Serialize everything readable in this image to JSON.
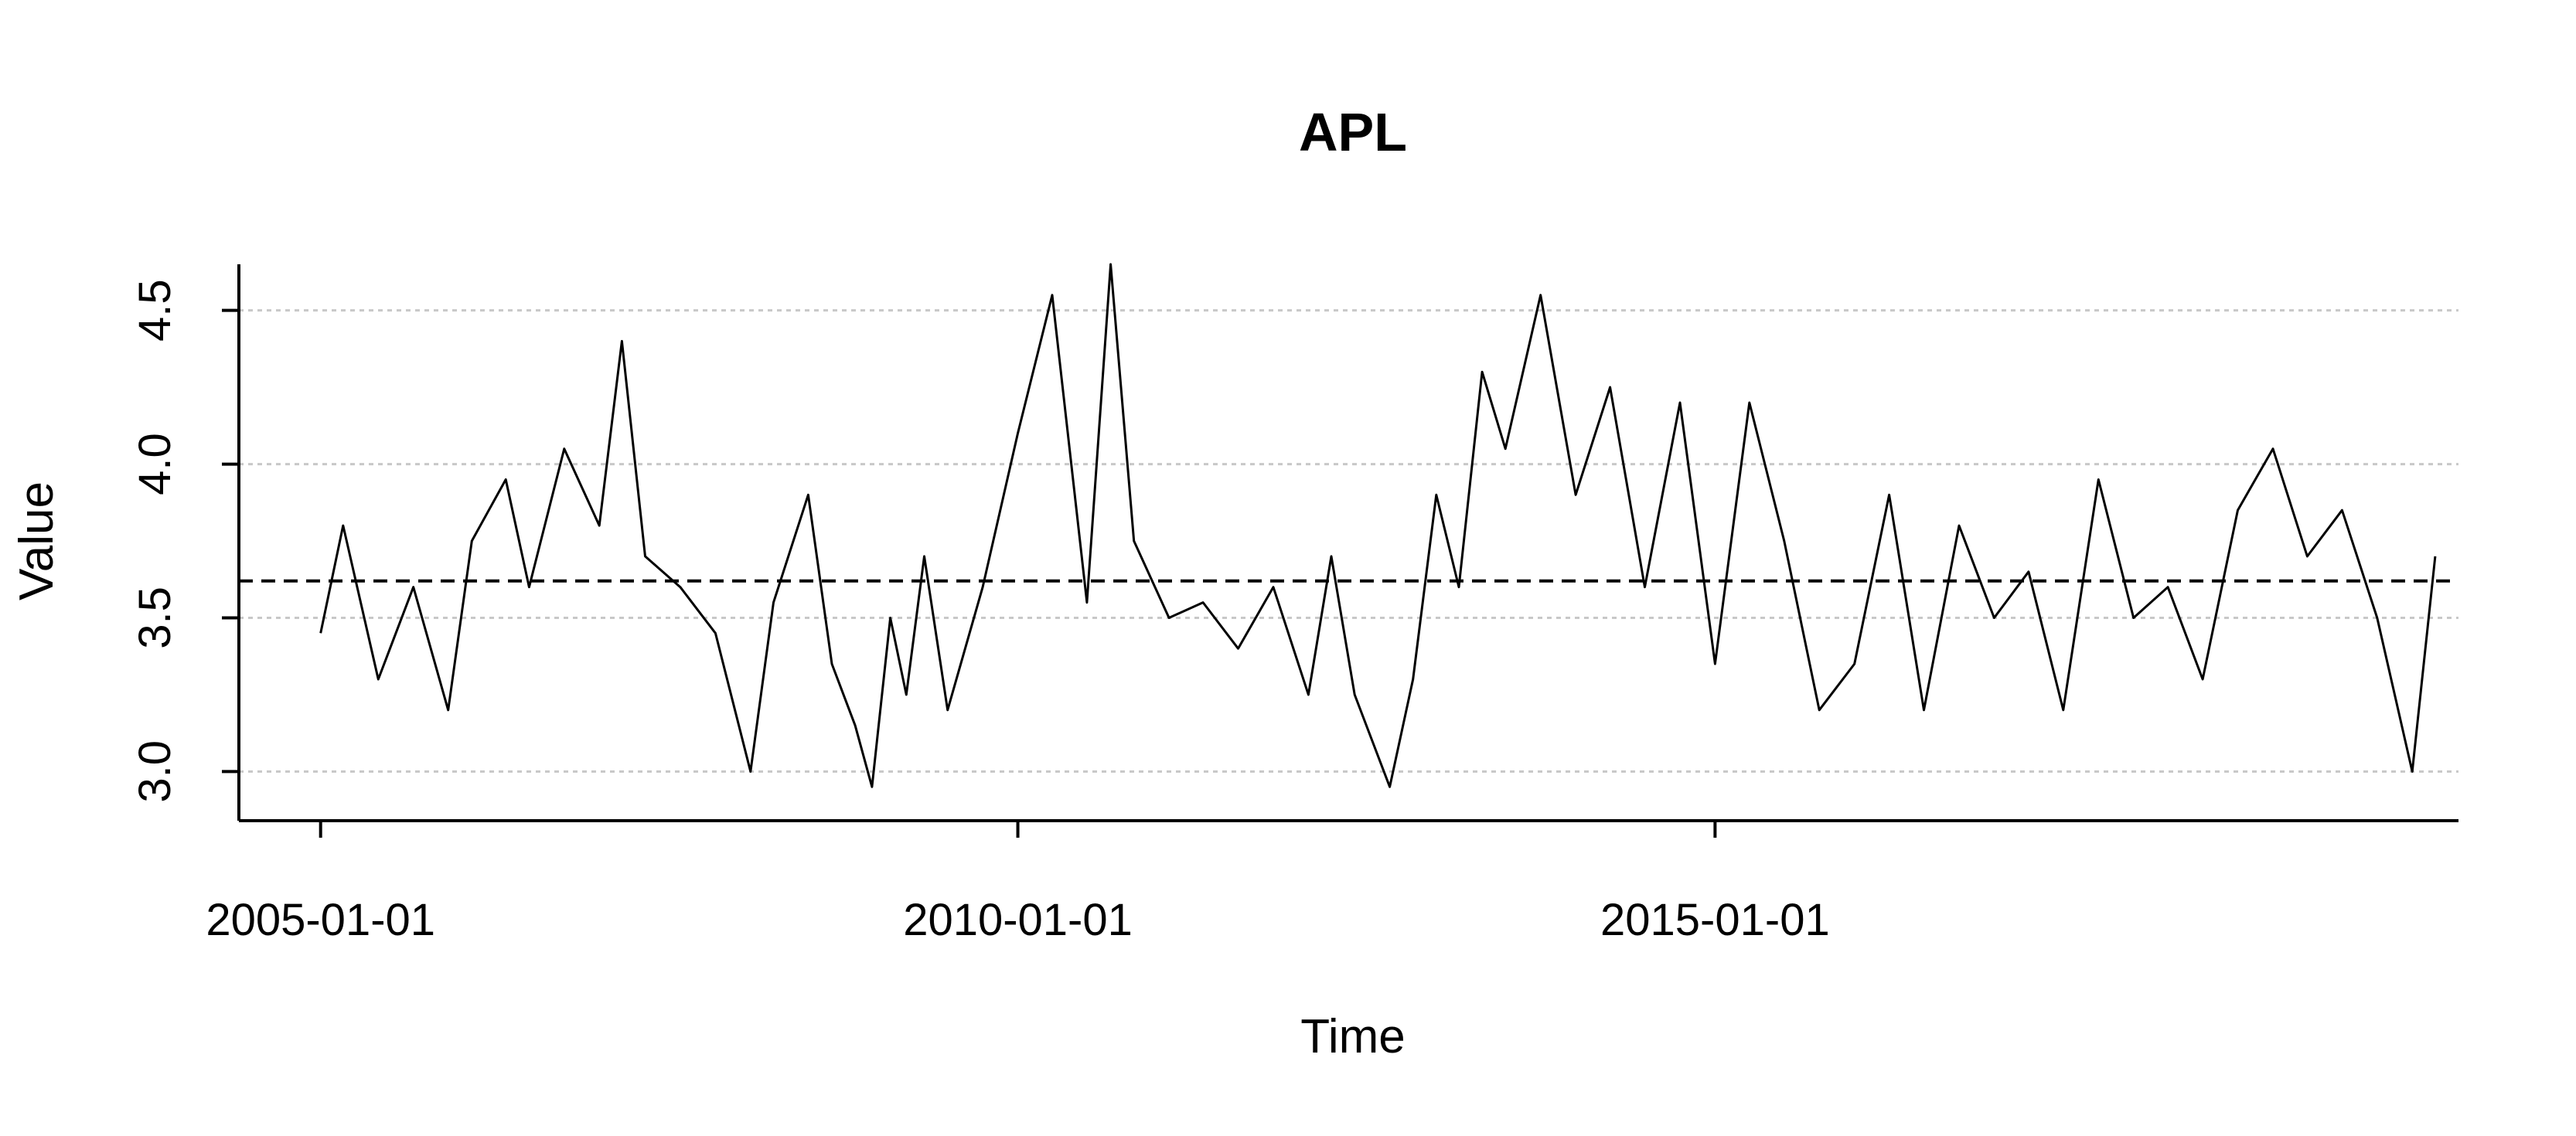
{
  "chart_data": {
    "type": "line",
    "title": "APL",
    "xlabel": "Time",
    "ylabel": "Value",
    "x_ticks": [
      "2005-01-01",
      "2010-01-01",
      "2015-01-01"
    ],
    "y_ticks": [
      "3.0",
      "3.5",
      "4.0",
      "4.5"
    ],
    "ylim": [
      2.84,
      4.65
    ],
    "xlim": [
      "2004-06-01",
      "2020-05-01"
    ],
    "gridlines_y": [
      3.0,
      3.5,
      4.0,
      4.5
    ],
    "mean_line": 3.62,
    "colors": {
      "line": "#000000",
      "grid": "#c8c8c8",
      "mean": "#000000"
    },
    "series": [
      {
        "x": [
          "2005-01-01",
          "2005-03-01",
          "2005-06-01",
          "2005-09-01",
          "2005-12-01",
          "2006-02-01",
          "2006-05-01",
          "2006-07-01",
          "2006-10-01",
          "2007-01-01",
          "2007-03-01",
          "2007-05-01",
          "2007-08-01",
          "2007-11-01",
          "2008-02-01",
          "2008-04-01",
          "2008-07-01",
          "2008-09-01",
          "2008-11-01",
          "2008-12-15",
          "2009-02-01",
          "2009-03-15",
          "2009-05-01",
          "2009-07-01",
          "2009-10-01",
          "2010-01-01",
          "2010-04-01",
          "2010-07-01",
          "2010-09-01",
          "2010-11-01",
          "2011-02-01",
          "2011-05-01",
          "2011-08-01",
          "2011-11-01",
          "2012-02-01",
          "2012-04-01",
          "2012-06-01",
          "2012-09-01",
          "2012-11-01",
          "2013-01-01",
          "2013-03-01",
          "2013-05-01",
          "2013-07-01",
          "2013-10-01",
          "2014-01-01",
          "2014-04-01",
          "2014-07-01",
          "2014-10-01",
          "2015-01-01",
          "2015-04-01",
          "2015-07-01",
          "2015-10-01",
          "2016-01-01",
          "2016-04-01",
          "2016-07-01",
          "2016-10-01",
          "2017-01-01",
          "2017-04-01",
          "2017-07-01",
          "2017-10-01",
          "2018-01-01",
          "2018-04-01",
          "2018-07-01",
          "2018-10-01",
          "2019-01-01",
          "2019-04-01",
          "2019-07-01",
          "2019-10-01",
          "2020-01-01",
          "2020-03-01"
        ],
        "values": [
          3.45,
          3.8,
          3.3,
          3.6,
          3.2,
          3.75,
          3.95,
          3.6,
          4.05,
          3.8,
          4.4,
          3.7,
          3.6,
          3.45,
          3.0,
          3.55,
          3.9,
          3.35,
          3.15,
          2.95,
          3.5,
          3.25,
          3.7,
          3.2,
          3.6,
          4.1,
          4.55,
          3.55,
          4.65,
          3.75,
          3.5,
          3.55,
          3.4,
          3.6,
          3.25,
          3.7,
          3.25,
          2.95,
          3.3,
          3.9,
          3.6,
          4.3,
          4.05,
          4.55,
          3.9,
          4.25,
          3.6,
          4.2,
          3.35,
          4.2,
          3.75,
          3.2,
          3.35,
          3.9,
          3.2,
          3.8,
          3.5,
          3.65,
          3.2,
          3.95,
          3.5,
          3.6,
          3.3,
          3.85,
          4.05,
          3.7,
          3.85,
          3.5,
          3.0,
          3.7
        ]
      }
    ]
  }
}
